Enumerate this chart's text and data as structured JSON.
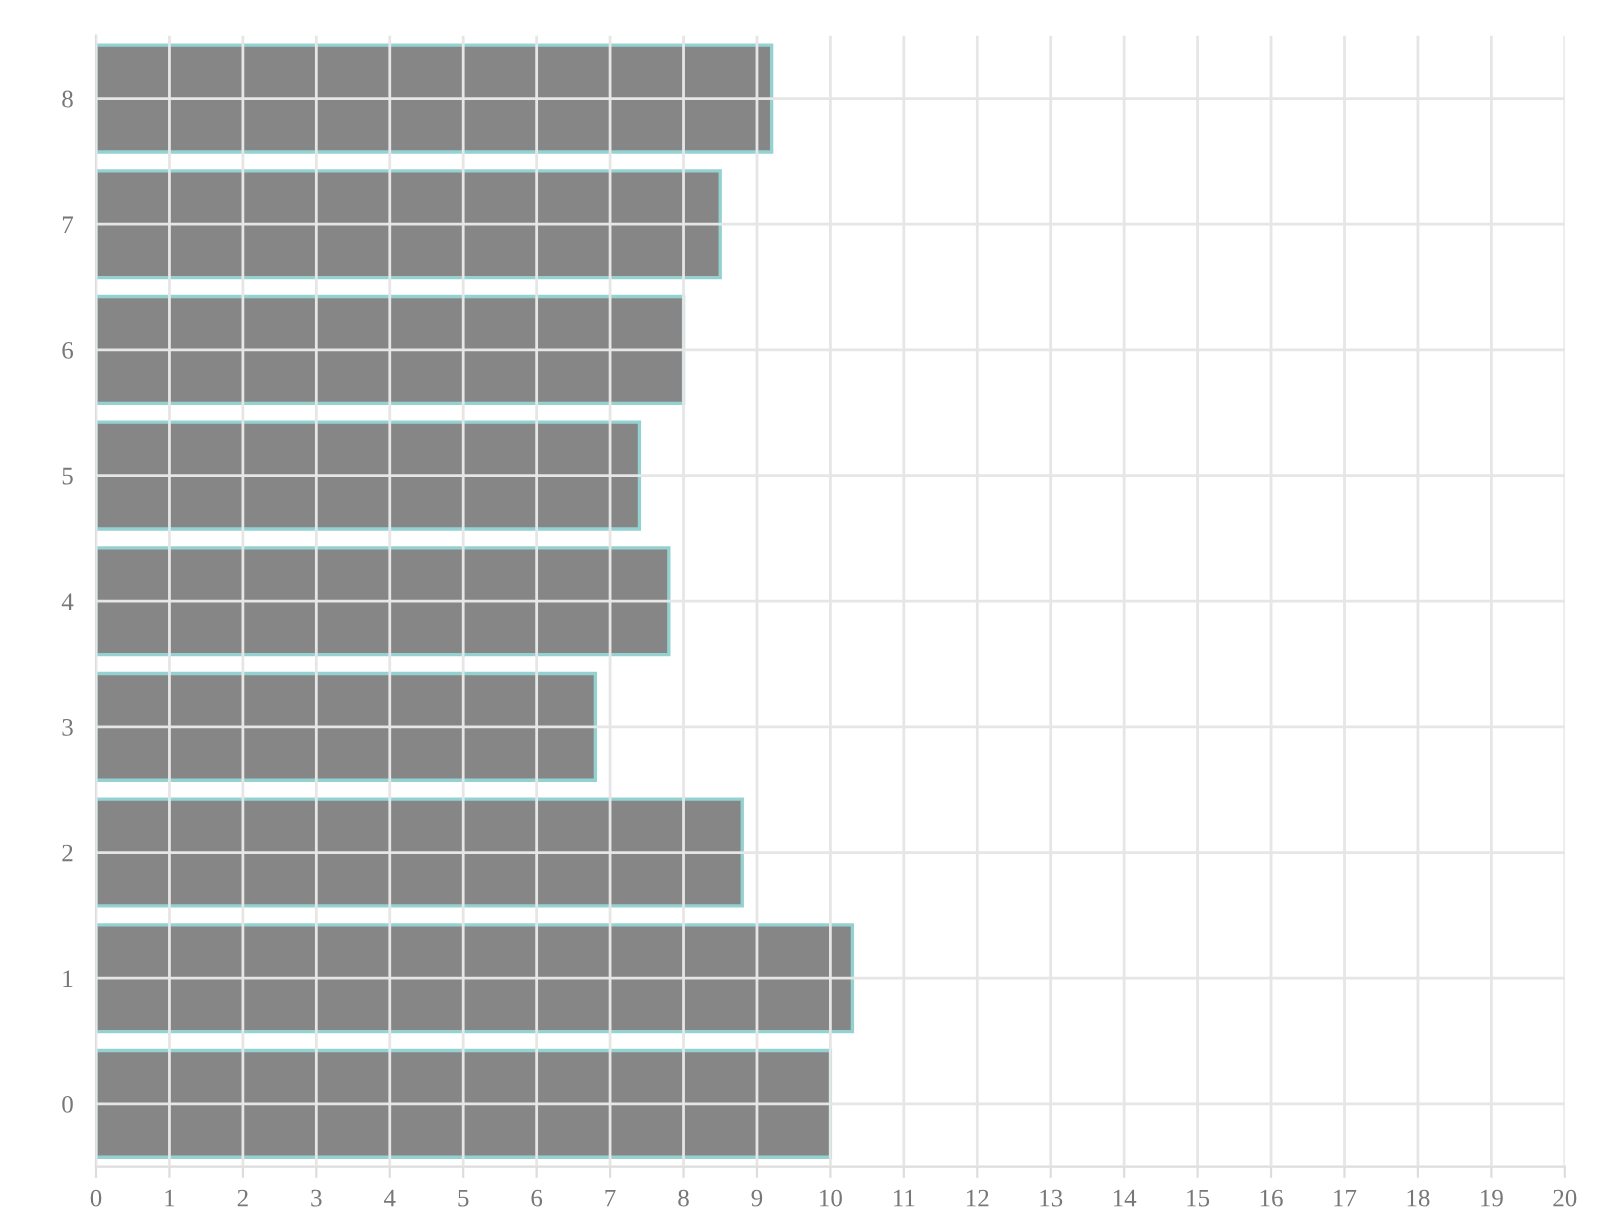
{
  "chart_data": {
    "type": "bar",
    "orientation": "horizontal",
    "categories": [
      "8",
      "7",
      "6",
      "5",
      "4",
      "3",
      "2",
      "1",
      "0"
    ],
    "values": [
      9.2,
      8.5,
      8.0,
      7.4,
      7.8,
      6.8,
      8.8,
      10.3,
      10.0
    ],
    "color": "#808080",
    "xlim": [
      0,
      20
    ],
    "xticks": [
      0,
      1,
      2,
      3,
      4,
      5,
      6,
      7,
      8,
      9,
      10,
      11,
      12,
      13,
      14,
      15,
      16,
      17,
      18,
      19,
      20
    ],
    "grid": true
  }
}
